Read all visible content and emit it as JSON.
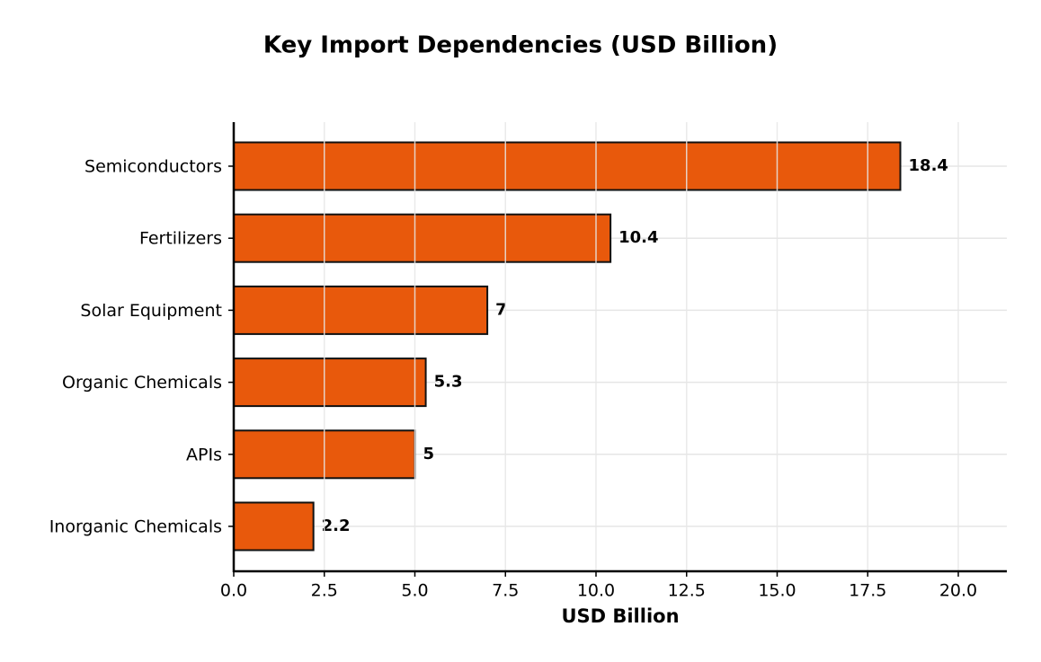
{
  "chart_data": {
    "type": "barh",
    "title": "Key Import Dependencies (USD Billion)",
    "xlabel": "USD Billion",
    "categories": [
      "Semiconductors",
      "Fertilizers",
      "Solar Equipment",
      "Organic Chemicals",
      "APIs",
      "Inorganic Chemicals"
    ],
    "values": [
      18.4,
      10.4,
      7,
      5.3,
      5,
      2.2
    ],
    "color": "#e8590c",
    "xlim": [
      0,
      21.34
    ],
    "xticks": [
      {
        "value": 0,
        "label": "0.0"
      },
      2.5,
      {
        "value": 5,
        "label": "5.0"
      },
      7.5,
      {
        "value": 10,
        "label": "10.0"
      },
      12.5,
      {
        "value": 15,
        "label": "15.0"
      },
      17.5,
      {
        "value": 20,
        "label": "20.0"
      }
    ],
    "grid": true
  }
}
